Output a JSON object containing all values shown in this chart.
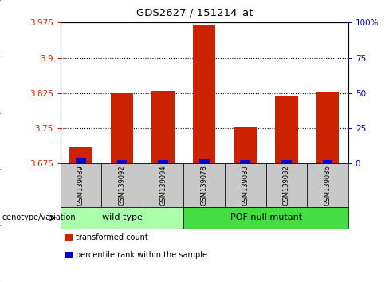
{
  "title": "GDS2627 / 151214_at",
  "samples": [
    "GSM139089",
    "GSM139092",
    "GSM139094",
    "GSM139078",
    "GSM139080",
    "GSM139082",
    "GSM139086"
  ],
  "group_labels": [
    "wild type",
    "POF null mutant"
  ],
  "wt_count": 3,
  "pof_count": 4,
  "baseline": 3.675,
  "ylim_left": [
    3.675,
    3.975
  ],
  "ylim_right": [
    0,
    100
  ],
  "yticks_left": [
    3.675,
    3.75,
    3.825,
    3.9,
    3.975
  ],
  "ytick_labels_left": [
    "3.675",
    "3.75",
    "3.825",
    "3.9",
    "3.975"
  ],
  "yticks_right": [
    0,
    25,
    50,
    75,
    100
  ],
  "ytick_labels_right": [
    "0",
    "25",
    "50",
    "75",
    "100%"
  ],
  "hlines": [
    3.75,
    3.825,
    3.9
  ],
  "red_bar_tops": [
    3.71,
    3.825,
    3.83,
    3.97,
    3.752,
    3.82,
    3.828
  ],
  "blue_bar_tops": [
    3.687,
    3.682,
    3.683,
    3.685,
    3.682,
    3.683,
    3.683
  ],
  "red_color": "#cc2200",
  "blue_color": "#0000cc",
  "bar_width": 0.55,
  "wt_color": "#aaffaa",
  "pof_color": "#44dd44",
  "box_bg": "#c8c8c8",
  "tick_label_color_left": "#cc2200",
  "tick_label_color_right": "#0000bb",
  "legend_red_label": "transformed count",
  "legend_blue_label": "percentile rank within the sample",
  "genotype_label": "genotype/variation"
}
